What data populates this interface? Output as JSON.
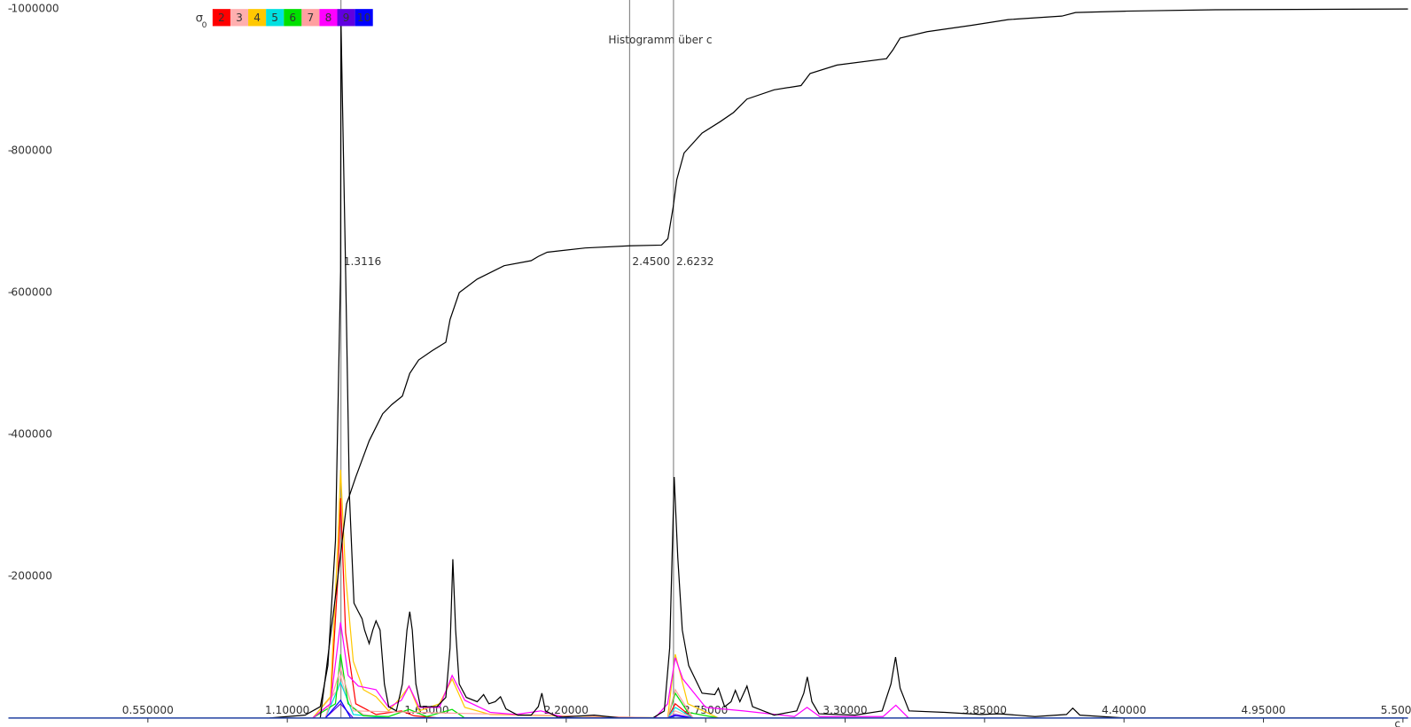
{
  "chart_data": {
    "type": "line",
    "title": "Histogramm über c",
    "x_label": "c",
    "legend_title": "σ",
    "legend_title_sub": "0",
    "xlim": [
      0,
      5.52
    ],
    "ylim": [
      0,
      1000000
    ],
    "xticks": [
      {
        "value": 0.55,
        "label": "0.550000"
      },
      {
        "value": 1.1,
        "label": "1.10000"
      },
      {
        "value": 1.65,
        "label": "1.65000"
      },
      {
        "value": 2.2,
        "label": "2.20000"
      },
      {
        "value": 2.75,
        "label": "2.75000"
      },
      {
        "value": 3.3,
        "label": "3.30000"
      },
      {
        "value": 3.85,
        "label": "3.85000"
      },
      {
        "value": 4.4,
        "label": "4.40000"
      },
      {
        "value": 4.95,
        "label": "4.95000"
      },
      {
        "value": 5.5,
        "label": "5.50000"
      }
    ],
    "yticks": [
      200000,
      400000,
      600000,
      800000,
      1000000
    ],
    "markers": [
      {
        "value": 1.3116,
        "label": "1.3116"
      },
      {
        "value": 2.45,
        "label": "2.4500"
      },
      {
        "value": 2.6232,
        "label": "2.6232"
      }
    ],
    "series": [
      {
        "name": "2",
        "color": "#ff0000",
        "x": [
          1.2,
          1.27,
          1.3,
          1.31,
          1.33,
          1.37,
          1.45,
          1.55,
          1.6,
          1.7,
          2.6,
          2.63,
          2.7
        ],
        "values": [
          0,
          20000,
          200000,
          310000,
          120000,
          20000,
          5000,
          10000,
          3000,
          0,
          0,
          20000,
          0
        ]
      },
      {
        "name": "3",
        "color": "#ffafaf",
        "x": [
          1.2,
          1.3,
          1.31,
          1.34,
          1.4,
          1.5,
          2.6,
          2.63,
          2.7
        ],
        "values": [
          0,
          40000,
          60000,
          20000,
          5000,
          0,
          0,
          10000,
          0
        ]
      },
      {
        "name": "4",
        "color": "#ffc800",
        "x": [
          1.2,
          1.27,
          1.3,
          1.31,
          1.33,
          1.36,
          1.4,
          1.45,
          1.5,
          1.55,
          1.58,
          1.62,
          1.7,
          1.75,
          1.8,
          1.9,
          2.6,
          2.63,
          2.68,
          2.8
        ],
        "values": [
          0,
          30000,
          250000,
          350000,
          200000,
          80000,
          40000,
          30000,
          10000,
          30000,
          45000,
          10000,
          20000,
          55000,
          15000,
          5000,
          0,
          90000,
          20000,
          0
        ]
      },
      {
        "name": "5",
        "color": "#00e0e0",
        "x": [
          1.25,
          1.31,
          1.36,
          1.5,
          2.6,
          2.63,
          2.7
        ],
        "values": [
          0,
          50000,
          5000,
          0,
          0,
          15000,
          0
        ]
      },
      {
        "name": "6",
        "color": "#00e000",
        "x": [
          1.2,
          1.29,
          1.31,
          1.34,
          1.4,
          1.5,
          1.58,
          1.65,
          1.75,
          1.8,
          2.6,
          2.63,
          2.68,
          2.8
        ],
        "values": [
          0,
          20000,
          90000,
          20000,
          3000,
          2000,
          12000,
          2000,
          12000,
          0,
          0,
          35000,
          8000,
          0
        ]
      },
      {
        "name": "7",
        "color": "#ffa0a0",
        "x": [
          1.25,
          1.31,
          1.36,
          2.6,
          2.63,
          2.7
        ],
        "values": [
          0,
          70000,
          10000,
          0,
          40000,
          0
        ]
      },
      {
        "name": "8",
        "color": "#ff00ff",
        "x": [
          1.2,
          1.27,
          1.31,
          1.34,
          1.38,
          1.45,
          1.5,
          1.55,
          1.58,
          1.62,
          1.7,
          1.75,
          1.8,
          1.9,
          2.0,
          2.1,
          2.2,
          2.55,
          2.6,
          2.63,
          2.66,
          2.75,
          2.9,
          3.1,
          3.15,
          3.2,
          3.45,
          3.5,
          3.55
        ],
        "values": [
          0,
          20000,
          135000,
          60000,
          45000,
          40000,
          15000,
          25000,
          45000,
          15000,
          15000,
          60000,
          25000,
          8000,
          5000,
          10000,
          0,
          0,
          20000,
          85000,
          55000,
          15000,
          10000,
          2000,
          15000,
          2000,
          2000,
          18000,
          0
        ]
      },
      {
        "name": "9",
        "color": "#6000e0",
        "x": [
          1.25,
          1.31,
          1.36,
          2.6,
          2.63,
          2.7
        ],
        "values": [
          0,
          20000,
          0,
          0,
          5000,
          0
        ]
      },
      {
        "name": "10",
        "color": "#0000ff",
        "x": [
          1.25,
          1.31,
          1.35,
          2.6,
          2.63,
          2.7
        ],
        "values": [
          0,
          25000,
          0,
          0,
          3000,
          0
        ]
      }
    ],
    "histogram": {
      "color": "#000000",
      "x": [
        1.03,
        1.17,
        1.23,
        1.26,
        1.29,
        1.31,
        1.3116,
        1.33,
        1.345,
        1.363,
        1.38,
        1.395,
        1.405,
        1.423,
        1.437,
        1.45,
        1.466,
        1.483,
        1.5,
        1.53,
        1.554,
        1.572,
        1.583,
        1.593,
        1.607,
        1.625,
        1.654,
        1.69,
        1.725,
        1.742,
        1.753,
        1.764,
        1.778,
        1.806,
        1.849,
        1.874,
        1.895,
        1.92,
        1.941,
        1.962,
        2.009,
        2.062,
        2.09,
        2.104,
        2.118,
        2.168,
        2.31,
        2.417,
        2.541,
        2.587,
        2.608,
        2.626,
        2.64,
        2.658,
        2.683,
        2.736,
        2.786,
        2.8,
        2.825,
        2.85,
        2.867,
        2.885,
        2.913,
        2.935,
        3.02,
        3.109,
        3.137,
        3.151,
        3.169,
        3.197,
        3.339,
        3.446,
        3.481,
        3.499,
        3.517,
        3.552,
        3.694,
        3.836,
        3.907,
        4.049,
        4.173,
        4.198,
        4.226,
        4.404,
        5.504
      ],
      "values": [
        0,
        4000,
        16000,
        74000,
        250000,
        630000,
        985000,
        630000,
        315000,
        162000,
        150000,
        140000,
        124000,
        105000,
        124000,
        137000,
        124000,
        48000,
        16000,
        10000,
        48000,
        124000,
        150000,
        124000,
        48000,
        16000,
        16000,
        16000,
        29000,
        99000,
        224000,
        124000,
        48000,
        29000,
        23000,
        33000,
        20000,
        23000,
        30000,
        13000,
        4000,
        4000,
        16000,
        35000,
        10000,
        1000,
        4000,
        0,
        0,
        10000,
        99000,
        340000,
        226000,
        124000,
        74000,
        35000,
        33000,
        42000,
        16000,
        23000,
        39000,
        23000,
        45000,
        16000,
        4000,
        10000,
        35000,
        58000,
        23000,
        6000,
        4000,
        10000,
        48000,
        86000,
        42000,
        10000,
        8000,
        5000,
        6000,
        2000,
        5000,
        14000,
        4000,
        0,
        0
      ]
    },
    "cumulative": {
      "color": "#000000",
      "x": [
        1.23,
        1.3,
        1.334,
        1.37,
        1.423,
        1.476,
        1.512,
        1.554,
        1.583,
        1.618,
        1.671,
        1.725,
        1.742,
        1.778,
        1.849,
        1.955,
        2.062,
        2.09,
        2.125,
        2.275,
        2.45,
        2.576,
        2.601,
        2.622,
        2.636,
        2.665,
        2.736,
        2.807,
        2.86,
        2.913,
        3.02,
        3.126,
        3.162,
        3.268,
        3.463,
        3.488,
        3.517,
        3.623,
        3.8,
        3.943,
        4.155,
        4.209,
        4.404,
        4.759,
        5.52
      ],
      "values": [
        0,
        200000,
        302000,
        340000,
        391000,
        429000,
        442000,
        454000,
        486000,
        505000,
        518000,
        530000,
        562000,
        600000,
        619000,
        638000,
        645000,
        651000,
        657000,
        663000,
        666000,
        667000,
        676000,
        721000,
        759000,
        797000,
        825000,
        841000,
        854000,
        873000,
        886000,
        892000,
        909000,
        921000,
        930000,
        942000,
        959000,
        968000,
        977000,
        985000,
        990000,
        995000,
        997000,
        999000,
        1000000
      ]
    }
  }
}
